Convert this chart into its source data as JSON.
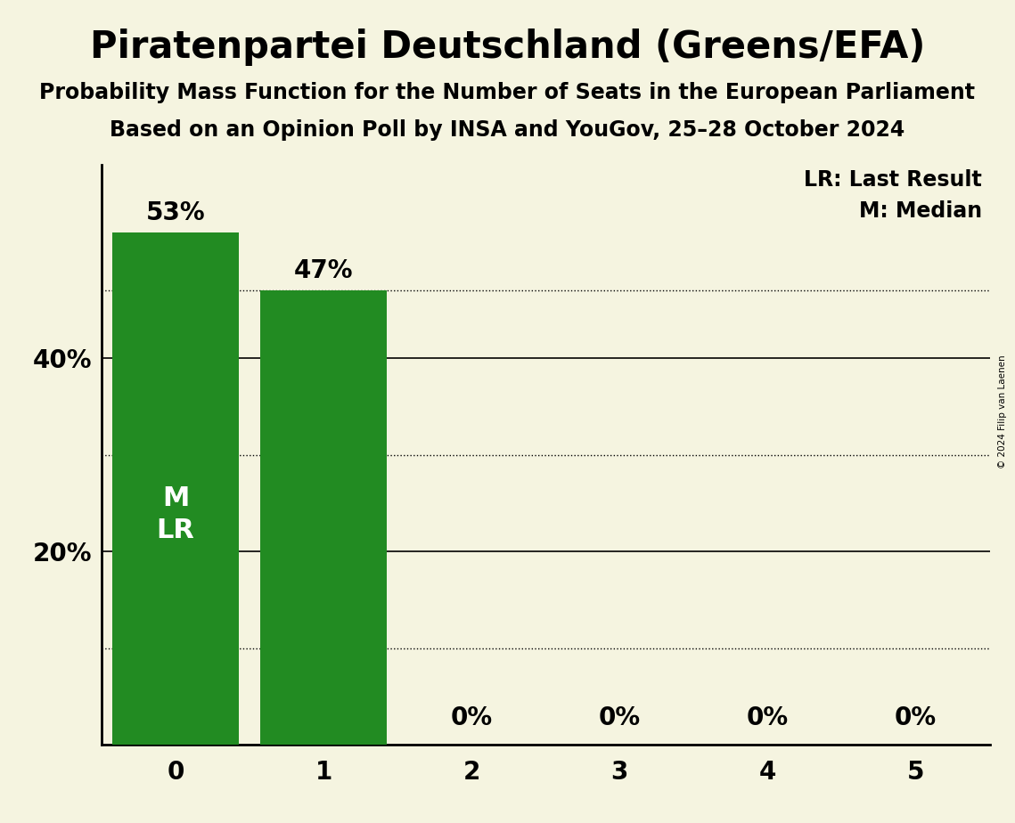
{
  "title": "Piratenpartei Deutschland (Greens/EFA)",
  "subtitle1": "Probability Mass Function for the Number of Seats in the European Parliament",
  "subtitle2": "Based on an Opinion Poll by INSA and YouGov, 25–28 October 2024",
  "copyright": "© 2024 Filip van Laenen",
  "categories": [
    0,
    1,
    2,
    3,
    4,
    5
  ],
  "values": [
    0.53,
    0.47,
    0.0,
    0.0,
    0.0,
    0.0
  ],
  "bar_color": "#228B22",
  "background_color": "#f5f4e0",
  "dotted_lines": [
    0.47,
    0.3,
    0.1
  ],
  "solid_lines": [
    0.4,
    0.2
  ],
  "yticks": [
    0.2,
    0.4
  ],
  "ytick_labels": [
    "20%",
    "40%"
  ],
  "legend_lr": "LR: Last Result",
  "legend_m": "M: Median",
  "title_fontsize": 30,
  "subtitle_fontsize": 17,
  "bar_label_fontsize": 20,
  "tick_label_fontsize": 20,
  "legend_fontsize": 17,
  "ml_fontsize": 22
}
